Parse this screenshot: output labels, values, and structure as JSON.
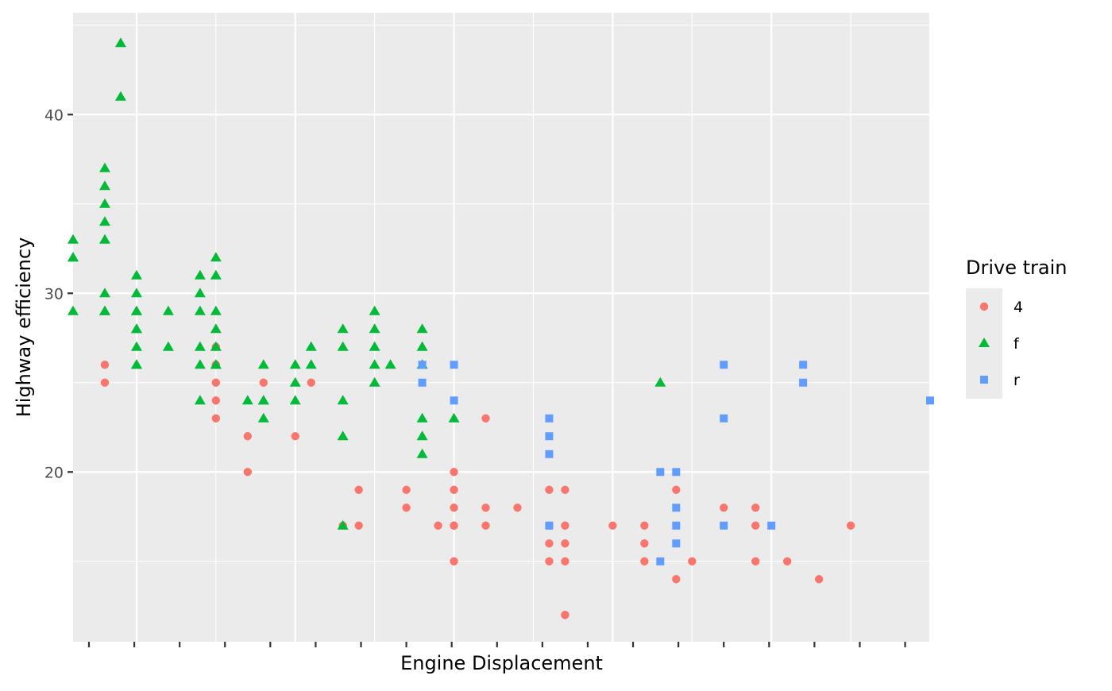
{
  "chart_data": {
    "type": "scatter",
    "xlabel": "Engine Displacement",
    "ylabel": "Highway efficiency",
    "legend_title": "Drive train",
    "legend_position": "right",
    "grid": true,
    "x_tick_labels_shown": false,
    "xlim": [
      1.6,
      7.0
    ],
    "ylim": [
      10.5,
      45.7
    ],
    "y_ticks": [
      20,
      30,
      40
    ],
    "y_tick_labels": [
      "20",
      "30",
      "40"
    ],
    "x_major_breaks": [
      2,
      3,
      4,
      5,
      6,
      7
    ],
    "y_minor_breaks": [
      15,
      25,
      35,
      45
    ],
    "colors": {
      "panel": "#EBEBEB",
      "grid": "#FFFFFF",
      "4": "#F8766D",
      "f": "#00BA38",
      "r": "#619CFF"
    },
    "series": [
      {
        "name": "4",
        "shape": "circle",
        "color": "#F8766D",
        "points": [
          [
            1.8,
            26
          ],
          [
            1.8,
            25
          ],
          [
            2.5,
            26
          ],
          [
            2.5,
            27
          ],
          [
            2.5,
            25
          ],
          [
            2.5,
            26
          ],
          [
            2.5,
            24
          ],
          [
            2.5,
            23
          ],
          [
            2.7,
            22
          ],
          [
            2.7,
            20
          ],
          [
            2.8,
            25
          ],
          [
            3.0,
            22
          ],
          [
            3.1,
            25
          ],
          [
            3.3,
            17
          ],
          [
            3.4,
            19
          ],
          [
            3.4,
            17
          ],
          [
            3.7,
            19
          ],
          [
            3.7,
            18
          ],
          [
            3.9,
            17
          ],
          [
            4.0,
            20
          ],
          [
            4.0,
            19
          ],
          [
            4.0,
            18
          ],
          [
            4.0,
            17
          ],
          [
            4.0,
            17
          ],
          [
            4.0,
            15
          ],
          [
            4.2,
            23
          ],
          [
            4.2,
            18
          ],
          [
            4.2,
            17
          ],
          [
            4.4,
            18
          ],
          [
            4.6,
            19
          ],
          [
            4.6,
            17
          ],
          [
            4.6,
            16
          ],
          [
            4.6,
            15
          ],
          [
            4.7,
            19
          ],
          [
            4.7,
            17
          ],
          [
            4.7,
            16
          ],
          [
            4.7,
            15
          ],
          [
            4.7,
            12
          ],
          [
            4.7,
            12
          ],
          [
            5.0,
            17
          ],
          [
            5.2,
            17
          ],
          [
            5.2,
            16
          ],
          [
            5.2,
            15
          ],
          [
            5.4,
            19
          ],
          [
            5.4,
            14
          ],
          [
            5.5,
            15
          ],
          [
            5.7,
            18
          ],
          [
            5.9,
            18
          ],
          [
            5.9,
            15
          ],
          [
            5.9,
            17
          ],
          [
            6.1,
            15
          ],
          [
            6.3,
            14
          ],
          [
            6.5,
            17
          ]
        ]
      },
      {
        "name": "f",
        "shape": "triangle",
        "color": "#00BA38",
        "points": [
          [
            1.6,
            33
          ],
          [
            1.6,
            32
          ],
          [
            1.6,
            32
          ],
          [
            1.6,
            29
          ],
          [
            1.8,
            37
          ],
          [
            1.8,
            36
          ],
          [
            1.8,
            35
          ],
          [
            1.8,
            34
          ],
          [
            1.8,
            33
          ],
          [
            1.8,
            30
          ],
          [
            1.8,
            29
          ],
          [
            1.8,
            29
          ],
          [
            1.9,
            44
          ],
          [
            1.9,
            41
          ],
          [
            2.0,
            31
          ],
          [
            2.0,
            30
          ],
          [
            2.0,
            29
          ],
          [
            2.0,
            29
          ],
          [
            2.0,
            28
          ],
          [
            2.0,
            28
          ],
          [
            2.0,
            27
          ],
          [
            2.0,
            26
          ],
          [
            2.0,
            26
          ],
          [
            2.2,
            29
          ],
          [
            2.2,
            27
          ],
          [
            2.4,
            31
          ],
          [
            2.4,
            30
          ],
          [
            2.4,
            29
          ],
          [
            2.4,
            27
          ],
          [
            2.4,
            26
          ],
          [
            2.4,
            24
          ],
          [
            2.5,
            32
          ],
          [
            2.5,
            31
          ],
          [
            2.5,
            29
          ],
          [
            2.5,
            28
          ],
          [
            2.5,
            27
          ],
          [
            2.5,
            26
          ],
          [
            2.5,
            26
          ],
          [
            2.7,
            24
          ],
          [
            2.8,
            26
          ],
          [
            2.8,
            24
          ],
          [
            2.8,
            24
          ],
          [
            2.8,
            23
          ],
          [
            3.0,
            26
          ],
          [
            3.0,
            25
          ],
          [
            3.0,
            24
          ],
          [
            3.1,
            27
          ],
          [
            3.1,
            26
          ],
          [
            3.3,
            28
          ],
          [
            3.3,
            27
          ],
          [
            3.3,
            24
          ],
          [
            3.3,
            22
          ],
          [
            3.3,
            17
          ],
          [
            3.5,
            29
          ],
          [
            3.5,
            28
          ],
          [
            3.5,
            27
          ],
          [
            3.5,
            26
          ],
          [
            3.5,
            25
          ],
          [
            3.6,
            26
          ],
          [
            3.8,
            28
          ],
          [
            3.8,
            27
          ],
          [
            3.8,
            26
          ],
          [
            3.8,
            23
          ],
          [
            3.8,
            22
          ],
          [
            3.8,
            21
          ],
          [
            4.0,
            23
          ],
          [
            5.3,
            25
          ]
        ]
      },
      {
        "name": "r",
        "shape": "square",
        "color": "#619CFF",
        "points": [
          [
            3.8,
            26
          ],
          [
            3.8,
            25
          ],
          [
            4.0,
            26
          ],
          [
            4.0,
            24
          ],
          [
            4.6,
            23
          ],
          [
            4.6,
            22
          ],
          [
            4.6,
            21
          ],
          [
            4.6,
            17
          ],
          [
            5.3,
            20
          ],
          [
            5.3,
            15
          ],
          [
            5.4,
            20
          ],
          [
            5.4,
            18
          ],
          [
            5.4,
            17
          ],
          [
            5.4,
            16
          ],
          [
            5.7,
            26
          ],
          [
            5.7,
            23
          ],
          [
            5.7,
            17
          ],
          [
            6.0,
            17
          ],
          [
            6.2,
            26
          ],
          [
            6.2,
            25
          ],
          [
            7.0,
            24
          ]
        ]
      }
    ]
  }
}
